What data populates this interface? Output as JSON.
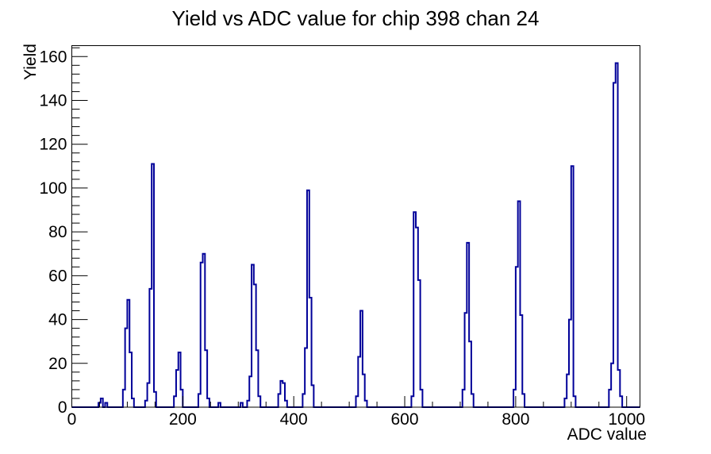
{
  "title": "Yield vs ADC value for chip 398 chan 24",
  "x_axis": {
    "label": "ADC value",
    "min": 0,
    "max": 1024,
    "major_tick_values": [
      0,
      200,
      400,
      600,
      800,
      1000
    ],
    "major_tick_labels": [
      "0",
      "200",
      "400",
      "600",
      "800",
      "1000"
    ],
    "minor_tick_step": 50
  },
  "y_axis": {
    "label": "Yield",
    "min": 0,
    "max": 164.8,
    "major_tick_values": [
      0,
      20,
      40,
      60,
      80,
      100,
      120,
      140,
      160
    ],
    "major_tick_labels": [
      "0",
      "20",
      "40",
      "60",
      "80",
      "100",
      "120",
      "140",
      "160"
    ],
    "minor_tick_step": 4
  },
  "chart_data": {
    "type": "bar",
    "subtype": "root-histogram-outline",
    "title": "Yield vs ADC value for chip 398 chan 24",
    "xlabel": "ADC value",
    "ylabel": "Yield",
    "xlim": [
      0,
      1024
    ],
    "ylim": [
      0,
      164.8
    ],
    "grid": false,
    "legend": false,
    "line_color": "#000099",
    "bin_width": 4,
    "bins_note": "pairs of [bin_left_edge_ADC, yield_count]; all unlisted bins are 0",
    "bins": [
      [
        48,
        2
      ],
      [
        52,
        4
      ],
      [
        60,
        2
      ],
      [
        92,
        8
      ],
      [
        96,
        36
      ],
      [
        100,
        49
      ],
      [
        104,
        25
      ],
      [
        108,
        4
      ],
      [
        132,
        3
      ],
      [
        136,
        11
      ],
      [
        140,
        54
      ],
      [
        144,
        111
      ],
      [
        148,
        7
      ],
      [
        184,
        5
      ],
      [
        188,
        17
      ],
      [
        192,
        25
      ],
      [
        196,
        8
      ],
      [
        228,
        6
      ],
      [
        232,
        66
      ],
      [
        236,
        70
      ],
      [
        240,
        26
      ],
      [
        244,
        4
      ],
      [
        264,
        2
      ],
      [
        304,
        2
      ],
      [
        316,
        3
      ],
      [
        320,
        14
      ],
      [
        324,
        65
      ],
      [
        328,
        56
      ],
      [
        332,
        26
      ],
      [
        336,
        5
      ],
      [
        372,
        6
      ],
      [
        376,
        12
      ],
      [
        380,
        11
      ],
      [
        384,
        3
      ],
      [
        416,
        6
      ],
      [
        420,
        27
      ],
      [
        424,
        99
      ],
      [
        428,
        50
      ],
      [
        432,
        10
      ],
      [
        512,
        5
      ],
      [
        516,
        23
      ],
      [
        520,
        44
      ],
      [
        524,
        15
      ],
      [
        528,
        3
      ],
      [
        612,
        5
      ],
      [
        616,
        89
      ],
      [
        620,
        82
      ],
      [
        624,
        58
      ],
      [
        628,
        8
      ],
      [
        704,
        8
      ],
      [
        708,
        43
      ],
      [
        712,
        75
      ],
      [
        716,
        30
      ],
      [
        720,
        6
      ],
      [
        796,
        8
      ],
      [
        800,
        64
      ],
      [
        804,
        94
      ],
      [
        808,
        42
      ],
      [
        812,
        6
      ],
      [
        888,
        4
      ],
      [
        892,
        15
      ],
      [
        896,
        40
      ],
      [
        900,
        110
      ],
      [
        904,
        5
      ],
      [
        968,
        8
      ],
      [
        972,
        20
      ],
      [
        976,
        148
      ],
      [
        980,
        157
      ],
      [
        984,
        17
      ],
      [
        988,
        5
      ]
    ]
  }
}
